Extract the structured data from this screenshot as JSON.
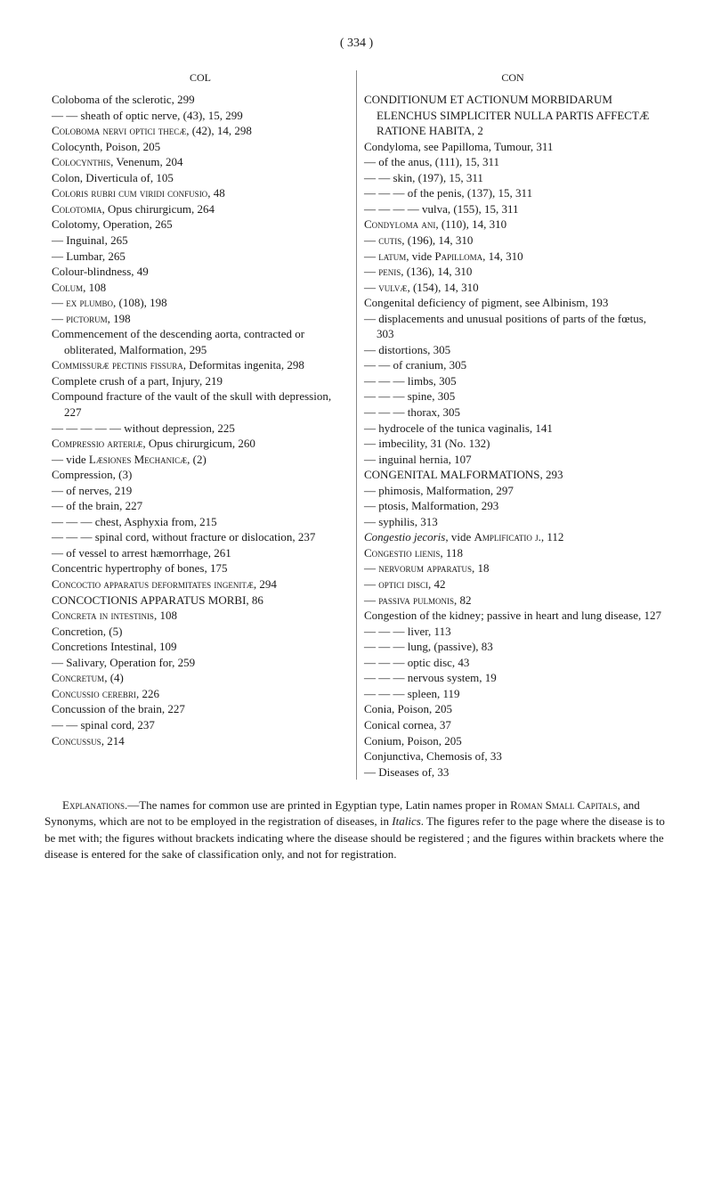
{
  "pageNumber": "( 334 )",
  "leftHeader": "COL",
  "rightHeader": "CON",
  "leftEntries": [
    "Coloboma of the sclerotic, 299",
    "— — sheath of optic nerve, (43), 15, 299",
    "<sc>Coloboma nervi optici thecæ</sc>, (42), 14, 298",
    "Colocynth, Poison, 205",
    "<sc>Colocynthis</sc>, Venenum, 204",
    "Colon, Diverticula of, 105",
    "<sc>Coloris rubri cum viridi confusio</sc>, 48",
    "<sc>Colotomia</sc>, Opus chirurgicum, 264",
    "Colotomy, Operation, 265",
    "— Inguinal, 265",
    "— Lumbar, 265",
    "Colour-blindness, 49",
    "<sc>Colum</sc>, 108",
    "— <sc>ex plumbo</sc>, (108), 198",
    "— <sc>pictorum</sc>, 198",
    "Commencement of the descending aorta, contracted or obliterated, Malformation, 295",
    "<sc>Commissuræ pectinis fissura</sc>, Deformitas ingenita, 298",
    "Complete crush of a part, Injury, 219",
    "Compound fracture of the vault of the skull with depression, 227",
    "— — — — — without depression, 225",
    "<sc>Compressio arteriæ</sc>, Opus chirurgicum, 260",
    "— vide <sc>Læsiones Mechanicæ</sc>, (2)",
    "Compression, (3)",
    "— of nerves, 219",
    "— of the brain, 227",
    "— — — chest, Asphyxia from, 215",
    "— — — spinal cord, without fracture or dislocation, 237",
    "— of vessel to arrest hæmorrhage, 261",
    "Concentric hypertrophy of bones, 175",
    "<sc>Concoctio apparatus deformitates ingenitæ</sc>, 294",
    "CONCOCTIONIS APPARATUS MORBI, 86",
    "<sc>Concreta in intestinis</sc>, 108",
    "Concretion, (5)",
    "Concretions Intestinal, 109",
    "— Salivary, Operation for, 259",
    "<sc>Concretum</sc>, (4)",
    "<sc>Concussio cerebri</sc>, 226",
    "Concussion of the brain, 227",
    "— — spinal cord, 237",
    "<sc>Concussus</sc>, 214"
  ],
  "rightEntries": [
    "CONDITIONUM ET ACTIONUM MORBIDARUM ELENCHUS SIMPLICITER NULLA PARTIS AFFECTÆ RATIONE HABITA, 2",
    "Condyloma, see Papilloma, Tumour, 311",
    "— of the anus, (111), 15, 311",
    "— — skin, (197), 15, 311",
    "— — — of the penis, (137), 15, 311",
    "— — — — vulva, (155), 15, 311",
    "<sc>Condyloma ani</sc>, (110), 14, 310",
    "— <sc>cutis</sc>, (196), 14, 310",
    "— <sc>latum</sc>, vide <sc>Papilloma</sc>, 14, 310",
    "— <sc>penis</sc>, (136), 14, 310",
    "— <sc>vulvæ</sc>, (154), 14, 310",
    "Congenital deficiency of pigment, see Albinism, 193",
    "— displacements and unusual positions of parts of the fœtus, 303",
    "— distortions, 305",
    "— — of cranium, 305",
    "— — — limbs, 305",
    "— — — spine, 305",
    "— — — thorax, 305",
    "— hydrocele of the tunica vaginalis, 141",
    "— imbecility, 31 (No. 132)",
    "— inguinal hernia, 107",
    "CONGENITAL MALFORMATIONS, 293",
    "— phimosis, Malformation, 297",
    "— ptosis, Malformation, 293",
    "— syphilis, 313",
    "<i>Congestio jecoris</i>, vide <sc>Amplificatio j.</sc>, 112",
    "<sc>Congestio lienis</sc>, 118",
    "— <sc>nervorum apparatus</sc>, 18",
    "— <sc>optici disci</sc>, 42",
    "— <sc>passiva pulmonis</sc>, 82",
    "Congestion of the kidney; passive in heart and lung disease, 127",
    "— — — liver, 113",
    "— — — lung, (passive), 83",
    "— — — optic disc, 43",
    "— — — nervous system, 19",
    "— — — spleen, 119",
    "Conia, Poison, 205",
    "Conical cornea, 37",
    "Conium, Poison, 205",
    "Conjunctiva, Chemosis of, 33",
    "— Diseases of, 33"
  ],
  "footer": "<sc>Explanations</sc>.—The names for common use are printed in Egyptian type, Latin names proper in <sc>Roman Small Capitals</sc>, and Synonyms, which are not to be employed in the registration of diseases, in <i>Italics</i>. The figures refer to the page where the disease is to be met with; the figures without brackets indicating where the disease should be registered ; and the figures within brackets where the disease is entered for the sake of classification only, and not for registration."
}
